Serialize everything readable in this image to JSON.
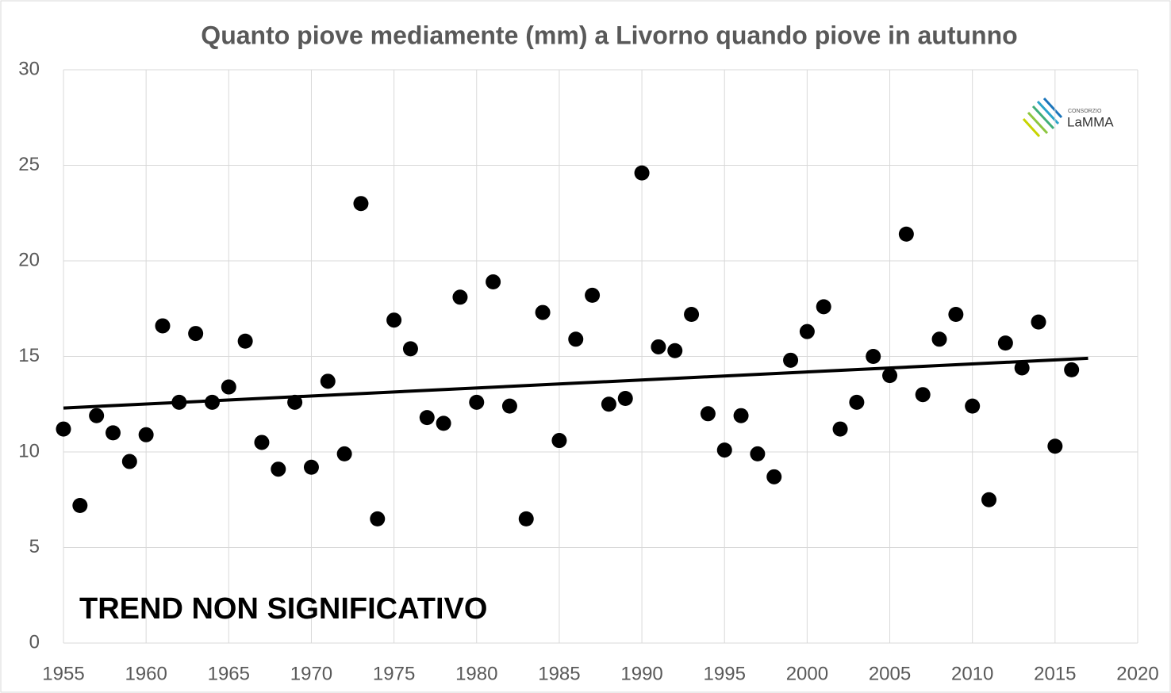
{
  "chart_data": {
    "type": "scatter",
    "title": "Quanto piove mediamente (mm) a Livorno quando piove in autunno",
    "annotation": "TREND NON SIGNIFICATIVO",
    "logo": {
      "small": "CONSORZIO",
      "name": "LaMMA"
    },
    "x": [
      1955,
      1956,
      1957,
      1958,
      1959,
      1960,
      1961,
      1962,
      1963,
      1964,
      1965,
      1966,
      1967,
      1968,
      1969,
      1970,
      1971,
      1972,
      1973,
      1974,
      1975,
      1976,
      1977,
      1978,
      1979,
      1980,
      1981,
      1982,
      1983,
      1984,
      1985,
      1986,
      1987,
      1988,
      1989,
      1990,
      1991,
      1992,
      1993,
      1994,
      1995,
      1996,
      1997,
      1998,
      1999,
      2000,
      2001,
      2002,
      2003,
      2004,
      2005,
      2006,
      2007,
      2008,
      2009,
      2010,
      2011,
      2012,
      2013,
      2014,
      2015,
      2016
    ],
    "values": [
      11.2,
      7.2,
      11.9,
      11.0,
      9.5,
      10.9,
      16.6,
      12.6,
      16.2,
      12.6,
      13.4,
      15.8,
      10.5,
      9.1,
      12.6,
      9.2,
      13.7,
      9.9,
      23.0,
      6.5,
      16.9,
      15.4,
      11.8,
      11.5,
      18.1,
      12.6,
      18.9,
      12.4,
      6.5,
      17.3,
      10.6,
      15.9,
      18.2,
      12.5,
      12.8,
      24.6,
      15.5,
      15.3,
      17.2,
      12.0,
      10.1,
      11.9,
      9.9,
      8.7,
      14.8,
      16.3,
      17.6,
      11.2,
      12.6,
      15.0,
      14.0,
      21.4,
      13.0,
      15.9,
      17.2,
      12.4,
      7.5,
      15.7,
      14.4,
      16.8,
      10.3,
      14.3
    ],
    "color": "#000000",
    "trend": {
      "x": [
        1955,
        2017
      ],
      "values": [
        12.3,
        14.9
      ]
    },
    "xlim": [
      1955,
      2020
    ],
    "xticks": [
      1955,
      1960,
      1965,
      1970,
      1975,
      1980,
      1985,
      1990,
      1995,
      2000,
      2005,
      2010,
      2015,
      2020
    ],
    "ylim": [
      0,
      30
    ],
    "yticks": [
      0,
      5,
      10,
      15,
      20,
      25,
      30
    ],
    "grid": true
  }
}
